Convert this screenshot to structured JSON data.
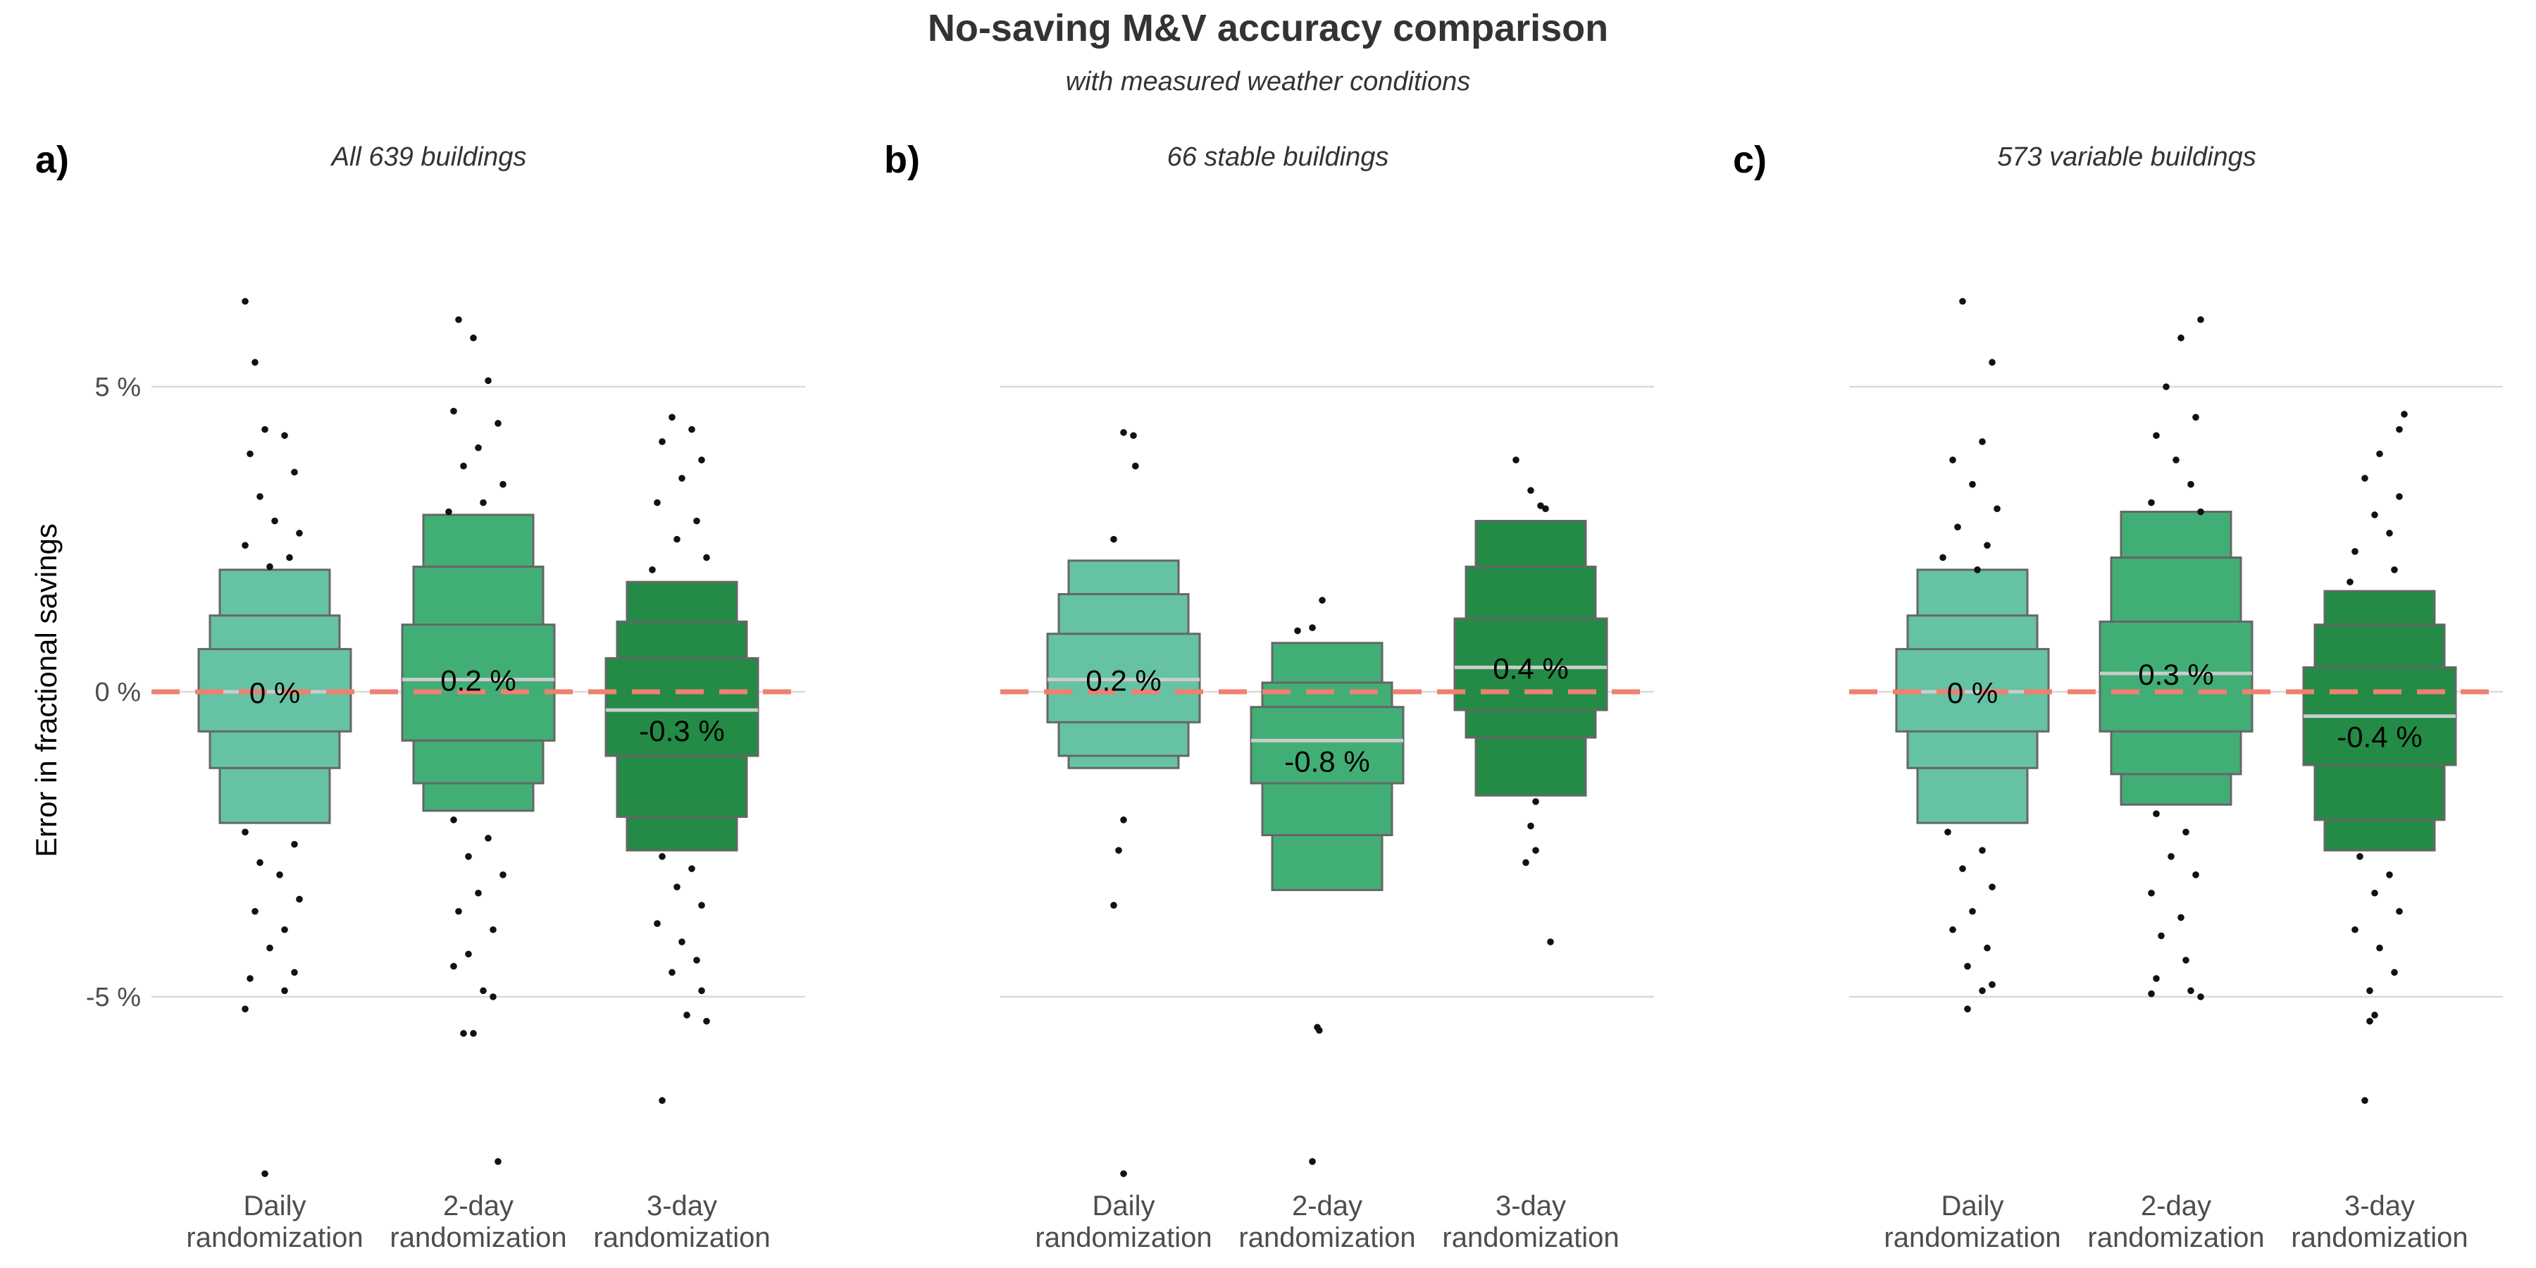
{
  "title": "No-saving M&V accuracy comparison",
  "subtitle": "with measured weather conditions",
  "ylabel": "Error in fractional savings",
  "colors": {
    "daily": "#66c2a4",
    "two_day": "#41ae76",
    "three_day": "#238b45",
    "box_border": "#666666",
    "median_line": "#cccccc",
    "zero_line": "#f08070",
    "grid": "#d9d9d9",
    "points": "#111111"
  },
  "chart_data": {
    "type": "letter-value boxplot with jittered outliers",
    "ylim": [
      -8.2,
      8.2
    ],
    "yticks": [
      -5,
      0,
      5
    ],
    "ytick_labels": [
      "-5 %",
      "0 %",
      "5 %"
    ],
    "reference_line": 0,
    "categories": [
      "Daily\nrandomization",
      "2-day\nrandomization",
      "3-day\nrandomization"
    ],
    "grid": "horizontal major only",
    "panels": [
      {
        "tag": "a)",
        "title": "All 639 buildings",
        "groups": [
          {
            "category": "Daily randomization",
            "median": 0.0,
            "median_label": "0 %",
            "levels": [
              [
                -0.65,
                0.7
              ],
              [
                -1.25,
                1.25
              ],
              [
                -2.15,
                2.0
              ]
            ],
            "outliers": [
              [
                -0.3,
                6.4
              ],
              [
                -0.2,
                5.4
              ],
              [
                -0.1,
                4.3
              ],
              [
                0.1,
                4.2
              ],
              [
                -0.25,
                3.9
              ],
              [
                0.2,
                3.6
              ],
              [
                -0.15,
                3.2
              ],
              [
                0.0,
                2.8
              ],
              [
                0.25,
                2.6
              ],
              [
                -0.3,
                2.4
              ],
              [
                0.15,
                2.2
              ],
              [
                -0.05,
                2.05
              ],
              [
                -0.3,
                -2.3
              ],
              [
                0.2,
                -2.5
              ],
              [
                -0.15,
                -2.8
              ],
              [
                0.05,
                -3.0
              ],
              [
                0.25,
                -3.4
              ],
              [
                -0.2,
                -3.6
              ],
              [
                0.1,
                -3.9
              ],
              [
                -0.05,
                -4.2
              ],
              [
                0.2,
                -4.6
              ],
              [
                -0.25,
                -4.7
              ],
              [
                0.1,
                -4.9
              ],
              [
                -0.3,
                -5.2
              ],
              [
                -0.1,
                -7.9
              ]
            ]
          },
          {
            "category": "2-day randomization",
            "median": 0.2,
            "median_label": "0.2 %",
            "levels": [
              [
                -0.8,
                1.1
              ],
              [
                -1.5,
                2.05
              ],
              [
                -1.95,
                2.9
              ]
            ],
            "outliers": [
              [
                -0.2,
                6.1
              ],
              [
                -0.05,
                5.8
              ],
              [
                0.1,
                5.1
              ],
              [
                -0.25,
                4.6
              ],
              [
                0.2,
                4.4
              ],
              [
                0.0,
                4.0
              ],
              [
                -0.15,
                3.7
              ],
              [
                0.25,
                3.4
              ],
              [
                0.05,
                3.1
              ],
              [
                -0.3,
                2.95
              ],
              [
                -0.25,
                -2.1
              ],
              [
                0.1,
                -2.4
              ],
              [
                -0.1,
                -2.7
              ],
              [
                0.25,
                -3.0
              ],
              [
                0.0,
                -3.3
              ],
              [
                -0.2,
                -3.6
              ],
              [
                0.15,
                -3.9
              ],
              [
                -0.1,
                -4.3
              ],
              [
                -0.25,
                -4.5
              ],
              [
                0.05,
                -4.9
              ],
              [
                0.15,
                -5.0
              ],
              [
                -0.15,
                -5.6
              ],
              [
                -0.05,
                -5.6
              ],
              [
                0.2,
                -7.7
              ]
            ]
          },
          {
            "category": "3-day randomization",
            "median": -0.3,
            "median_label": "-0.3 %",
            "levels": [
              [
                -1.05,
                0.55
              ],
              [
                -2.05,
                1.15
              ],
              [
                -2.6,
                1.8
              ]
            ],
            "outliers": [
              [
                -0.1,
                4.5
              ],
              [
                0.1,
                4.3
              ],
              [
                -0.2,
                4.1
              ],
              [
                0.2,
                3.8
              ],
              [
                0.0,
                3.5
              ],
              [
                -0.25,
                3.1
              ],
              [
                0.15,
                2.8
              ],
              [
                -0.05,
                2.5
              ],
              [
                0.25,
                2.2
              ],
              [
                -0.3,
                2.0
              ],
              [
                -0.2,
                -2.7
              ],
              [
                0.1,
                -2.9
              ],
              [
                -0.05,
                -3.2
              ],
              [
                0.2,
                -3.5
              ],
              [
                -0.25,
                -3.8
              ],
              [
                0.0,
                -4.1
              ],
              [
                0.15,
                -4.4
              ],
              [
                -0.1,
                -4.6
              ],
              [
                0.2,
                -4.9
              ],
              [
                0.05,
                -5.3
              ],
              [
                0.25,
                -5.4
              ],
              [
                -0.2,
                -6.7
              ]
            ]
          }
        ]
      },
      {
        "tag": "b)",
        "title": "66 stable buildings",
        "groups": [
          {
            "category": "Daily randomization",
            "median": 0.2,
            "median_label": "0.2 %",
            "levels": [
              [
                -0.5,
                0.95
              ],
              [
                -1.05,
                1.6
              ],
              [
                -1.25,
                2.15
              ]
            ],
            "outliers": [
              [
                0.0,
                4.25
              ],
              [
                0.1,
                4.2
              ],
              [
                0.12,
                3.7
              ],
              [
                -0.1,
                2.5
              ],
              [
                0.0,
                -2.1
              ],
              [
                -0.05,
                -2.6
              ],
              [
                -0.1,
                -3.5
              ],
              [
                0.0,
                -7.9
              ]
            ]
          },
          {
            "category": "2-day randomization",
            "median": -0.8,
            "median_label": "-0.8 %",
            "levels": [
              [
                -1.5,
                -0.25
              ],
              [
                -2.35,
                0.15
              ],
              [
                -3.25,
                0.8
              ]
            ],
            "outliers": [
              [
                -0.05,
                1.5
              ],
              [
                -0.15,
                1.05
              ],
              [
                -0.3,
                1.0
              ],
              [
                -0.1,
                -5.5
              ],
              [
                -0.08,
                -5.55
              ],
              [
                -0.15,
                -7.7
              ]
            ]
          },
          {
            "category": "3-day randomization",
            "median": 0.4,
            "median_label": "0.4 %",
            "levels": [
              [
                -0.3,
                1.2
              ],
              [
                -0.75,
                2.05
              ],
              [
                -1.7,
                2.8
              ]
            ],
            "outliers": [
              [
                -0.15,
                3.8
              ],
              [
                0.0,
                3.3
              ],
              [
                0.1,
                3.05
              ],
              [
                0.15,
                3.0
              ],
              [
                0.05,
                -1.8
              ],
              [
                0.0,
                -2.2
              ],
              [
                0.05,
                -2.6
              ],
              [
                -0.05,
                -2.8
              ],
              [
                0.2,
                -4.1
              ]
            ]
          }
        ]
      },
      {
        "tag": "c)",
        "title": "573 variable buildings",
        "groups": [
          {
            "category": "Daily randomization",
            "median": 0.0,
            "median_label": "0 %",
            "levels": [
              [
                -0.65,
                0.7
              ],
              [
                -1.25,
                1.25
              ],
              [
                -2.15,
                2.0
              ]
            ],
            "outliers": [
              [
                -0.1,
                6.4
              ],
              [
                0.2,
                5.4
              ],
              [
                0.1,
                4.1
              ],
              [
                -0.2,
                3.8
              ],
              [
                0.0,
                3.4
              ],
              [
                0.25,
                3.0
              ],
              [
                -0.15,
                2.7
              ],
              [
                0.15,
                2.4
              ],
              [
                -0.3,
                2.2
              ],
              [
                0.05,
                2.0
              ],
              [
                -0.25,
                -2.3
              ],
              [
                0.1,
                -2.6
              ],
              [
                -0.1,
                -2.9
              ],
              [
                0.2,
                -3.2
              ],
              [
                0.0,
                -3.6
              ],
              [
                -0.2,
                -3.9
              ],
              [
                0.15,
                -4.2
              ],
              [
                -0.05,
                -4.5
              ],
              [
                0.2,
                -4.8
              ],
              [
                0.1,
                -4.9
              ],
              [
                -0.05,
                -5.2
              ]
            ]
          },
          {
            "category": "2-day randomization",
            "median": 0.3,
            "median_label": "0.3 %",
            "levels": [
              [
                -0.65,
                1.15
              ],
              [
                -1.35,
                2.2
              ],
              [
                -1.85,
                2.95
              ]
            ],
            "outliers": [
              [
                0.25,
                6.1
              ],
              [
                0.05,
                5.8
              ],
              [
                -0.1,
                5.0
              ],
              [
                0.2,
                4.5
              ],
              [
                -0.2,
                4.2
              ],
              [
                0.0,
                3.8
              ],
              [
                0.15,
                3.4
              ],
              [
                -0.25,
                3.1
              ],
              [
                0.25,
                2.95
              ],
              [
                -0.2,
                -2.0
              ],
              [
                0.1,
                -2.3
              ],
              [
                -0.05,
                -2.7
              ],
              [
                0.2,
                -3.0
              ],
              [
                -0.25,
                -3.3
              ],
              [
                0.05,
                -3.7
              ],
              [
                -0.15,
                -4.0
              ],
              [
                0.1,
                -4.4
              ],
              [
                -0.2,
                -4.7
              ],
              [
                0.15,
                -4.9
              ],
              [
                -0.25,
                -4.95
              ],
              [
                0.25,
                -5.0
              ]
            ]
          },
          {
            "category": "3-day randomization",
            "median": -0.4,
            "median_label": "-0.4 %",
            "levels": [
              [
                -1.2,
                0.4
              ],
              [
                -2.1,
                1.1
              ],
              [
                -2.6,
                1.65
              ]
            ],
            "outliers": [
              [
                0.25,
                4.55
              ],
              [
                0.2,
                4.3
              ],
              [
                0.0,
                3.9
              ],
              [
                -0.15,
                3.5
              ],
              [
                0.2,
                3.2
              ],
              [
                -0.05,
                2.9
              ],
              [
                0.1,
                2.6
              ],
              [
                -0.25,
                2.3
              ],
              [
                0.15,
                2.0
              ],
              [
                -0.3,
                1.8
              ],
              [
                -0.2,
                -2.7
              ],
              [
                0.1,
                -3.0
              ],
              [
                -0.05,
                -3.3
              ],
              [
                0.2,
                -3.6
              ],
              [
                -0.25,
                -3.9
              ],
              [
                0.0,
                -4.2
              ],
              [
                0.15,
                -4.6
              ],
              [
                -0.1,
                -4.9
              ],
              [
                -0.05,
                -5.3
              ],
              [
                -0.1,
                -5.4
              ],
              [
                -0.15,
                -6.7
              ]
            ]
          }
        ]
      }
    ]
  }
}
